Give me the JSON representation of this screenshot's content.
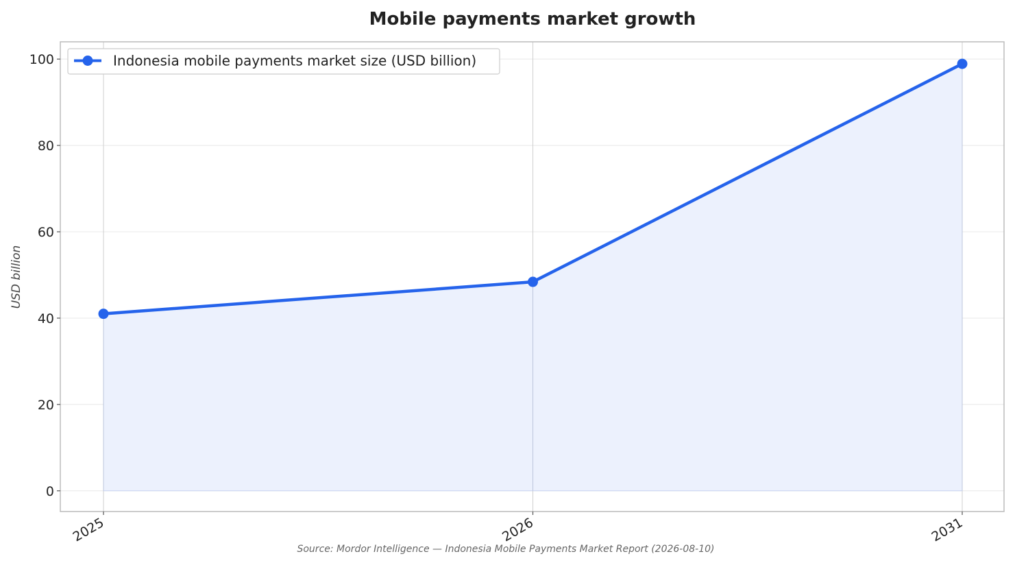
{
  "chart_data": {
    "type": "area",
    "title": "Mobile payments market growth",
    "ylabel": "USD billion",
    "xlabel": "",
    "categories": [
      "2025",
      "2026",
      "2031"
    ],
    "series": [
      {
        "name": "Indonesia mobile payments market size (USD billion)",
        "values": [
          41.0,
          48.4,
          98.9
        ]
      }
    ],
    "y_ticks": [
      "0",
      "20",
      "40",
      "60",
      "80",
      "100"
    ],
    "ylim": [
      -4.8,
      104
    ],
    "grid": true,
    "legend_position": "top-left",
    "colors": {
      "line": "#2563eb",
      "fill": "#ecf1fd",
      "grid": "#e8e8e8",
      "frame": "#bbbbbb"
    }
  },
  "source": "Source: Mordor Intelligence — Indonesia Mobile Payments Market Report (2026-08-10)"
}
